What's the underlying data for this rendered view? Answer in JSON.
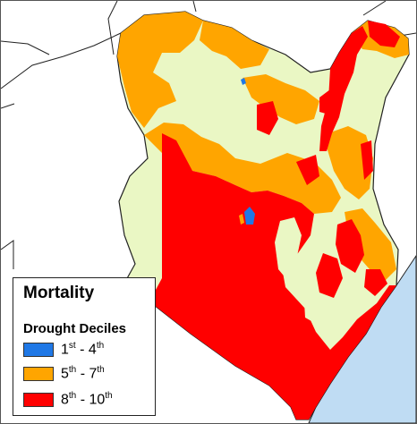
{
  "legend": {
    "title": "Mortality",
    "subtitle": "Drought Deciles",
    "items": [
      {
        "from": "1",
        "from_suffix": "st",
        "to": "4",
        "to_suffix": "th",
        "color": "#1f78e6"
      },
      {
        "from": "5",
        "from_suffix": "th",
        "to": "7",
        "to_suffix": "th",
        "color": "#ffa500"
      },
      {
        "from": "8",
        "from_suffix": "th",
        "to": "10",
        "to_suffix": "th",
        "color": "#ff0000"
      }
    ]
  },
  "colors": {
    "background_land": "#ffffff",
    "no_data_land": "#eaf7c4",
    "ocean": "#bfdcf3",
    "boundary": "#222222"
  }
}
